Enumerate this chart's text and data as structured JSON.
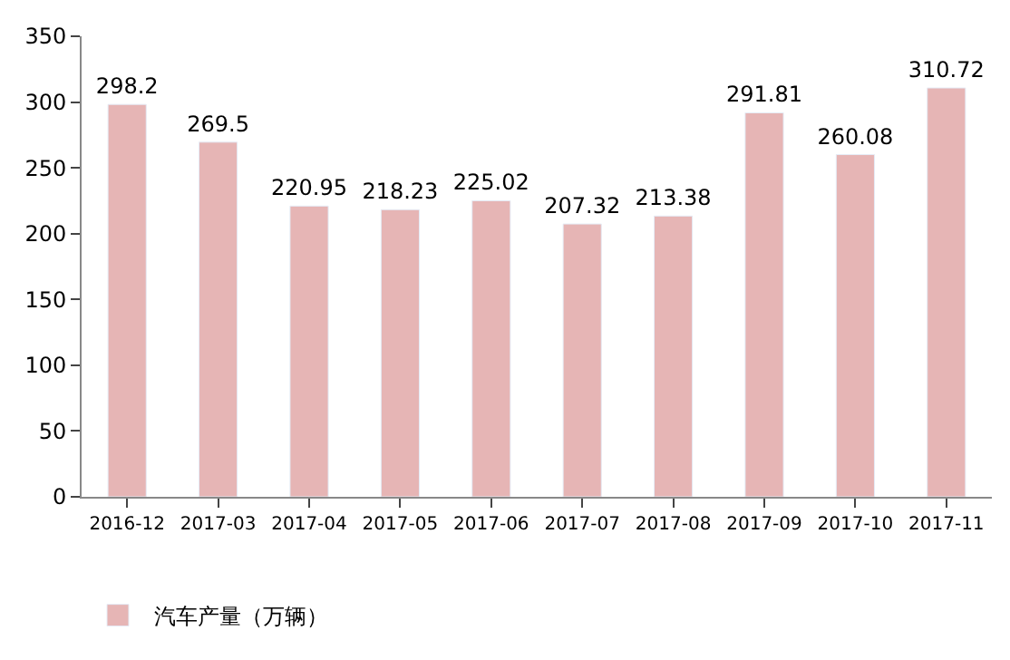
{
  "chart_data": {
    "type": "bar",
    "categories": [
      "2016-12",
      "2017-03",
      "2017-04",
      "2017-05",
      "2017-06",
      "2017-07",
      "2017-08",
      "2017-09",
      "2017-10",
      "2017-11"
    ],
    "series": [
      {
        "name": "汽车产量（万辆）",
        "color": "#e6b5b5",
        "values": [
          298.2,
          269.5,
          220.95,
          218.23,
          225.02,
          207.32,
          213.38,
          291.81,
          260.08,
          310.72
        ]
      }
    ],
    "ylim": [
      0,
      350
    ],
    "yticks": [
      0,
      50,
      100,
      150,
      200,
      250,
      300,
      350
    ],
    "data_labels": true,
    "legend": "bottom"
  }
}
